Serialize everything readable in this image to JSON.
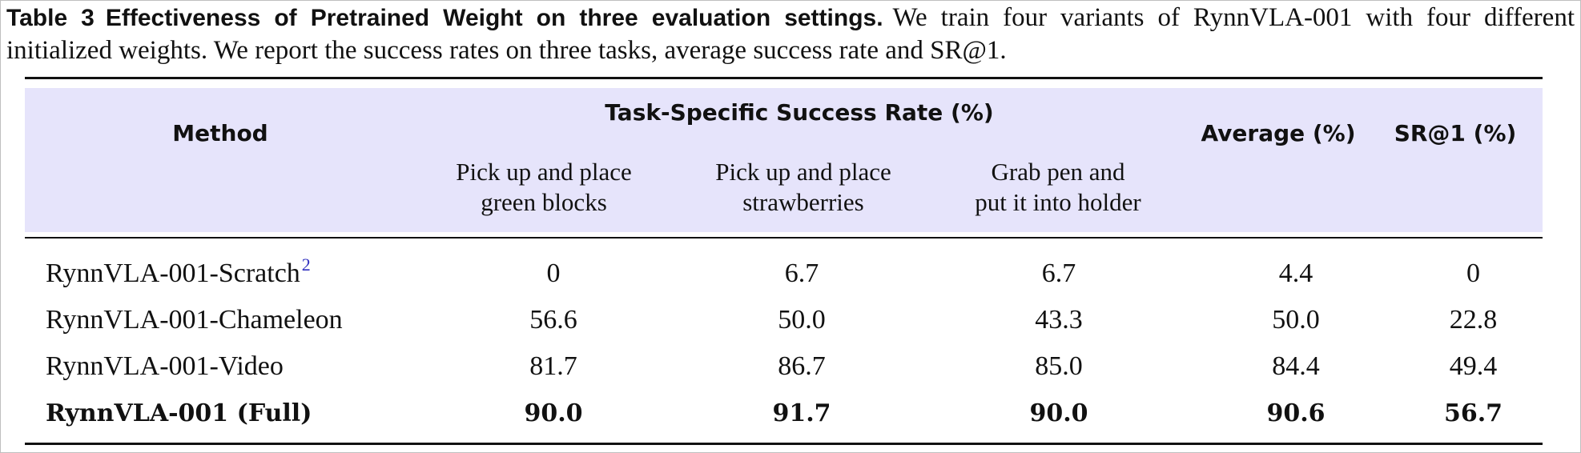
{
  "caption": {
    "label": "Table 3",
    "title": "Effectiveness of Pretrained Weight on three evaluation settings.",
    "text": "We train four variants of RynnVLA-001 with four different initialized weights. We report the success rates on three tasks, average success rate and SR@1."
  },
  "header": {
    "method": "Method",
    "group": "Task-Specific Success Rate (%)",
    "tasks": [
      {
        "line1": "Pick up and place",
        "line2": "green blocks"
      },
      {
        "line1": "Pick up and place",
        "line2": "strawberries"
      },
      {
        "line1": "Grab pen and",
        "line2": "put it into holder"
      }
    ],
    "average": "Average (%)",
    "sr1": "SR@1 (%)"
  },
  "rows": [
    {
      "method": "RynnVLA-001-Scratch",
      "footnote": "2",
      "task1": "0",
      "task2": "6.7",
      "task3": "6.7",
      "average": "4.4",
      "sr1": "0"
    },
    {
      "method": "RynnVLA-001-Chameleon",
      "task1": "56.6",
      "task2": "50.0",
      "task3": "43.3",
      "average": "50.0",
      "sr1": "22.8"
    },
    {
      "method": "RynnVLA-001-Video",
      "task1": "81.7",
      "task2": "86.7",
      "task3": "85.0",
      "average": "84.4",
      "sr1": "49.4"
    },
    {
      "method": "RynnVLA-001 (Full)",
      "task1": "90.0",
      "task2": "91.7",
      "task3": "90.0",
      "average": "90.6",
      "sr1": "56.7"
    }
  ],
  "colors": {
    "header_background": "#e6e4fb",
    "footnote": "#2f2fbf",
    "text": "#111111"
  }
}
